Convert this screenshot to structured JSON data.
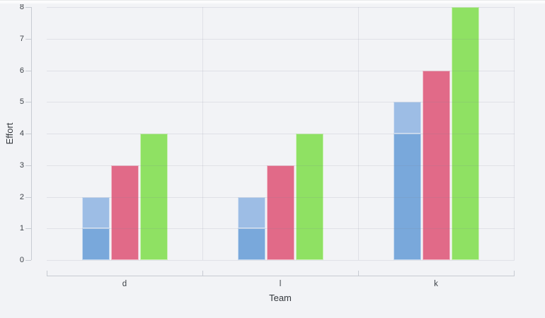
{
  "chart_data": {
    "type": "bar",
    "title": "",
    "xlabel": "Team",
    "ylabel": "Effort",
    "categories": [
      "d",
      "l",
      "k"
    ],
    "series": [
      {
        "name": "blue-lower",
        "stack": "blue",
        "color": "#79a8db",
        "values": [
          1,
          1,
          4
        ]
      },
      {
        "name": "blue-upper",
        "stack": "blue",
        "color": "#9dbde5",
        "values": [
          1,
          1,
          1
        ]
      },
      {
        "name": "pink",
        "color": "#e16a88",
        "values": [
          3,
          3,
          6
        ]
      },
      {
        "name": "green",
        "color": "#8fe163",
        "values": [
          4,
          4,
          8
        ]
      }
    ],
    "ylim": [
      0,
      8
    ],
    "ytick_step": 1,
    "yticks": [
      0,
      1,
      2,
      3,
      4,
      5,
      6,
      7,
      8
    ],
    "grid": true,
    "legend": "none",
    "colors": {
      "background": "#f2f3f6",
      "gridline": "#e4e7eb",
      "axis_line": "#c7cbd2",
      "tick_text": "#3d4248",
      "axis_title_text": "#33373c",
      "bar_border": "rgba(255,255,255,0.55)"
    }
  }
}
